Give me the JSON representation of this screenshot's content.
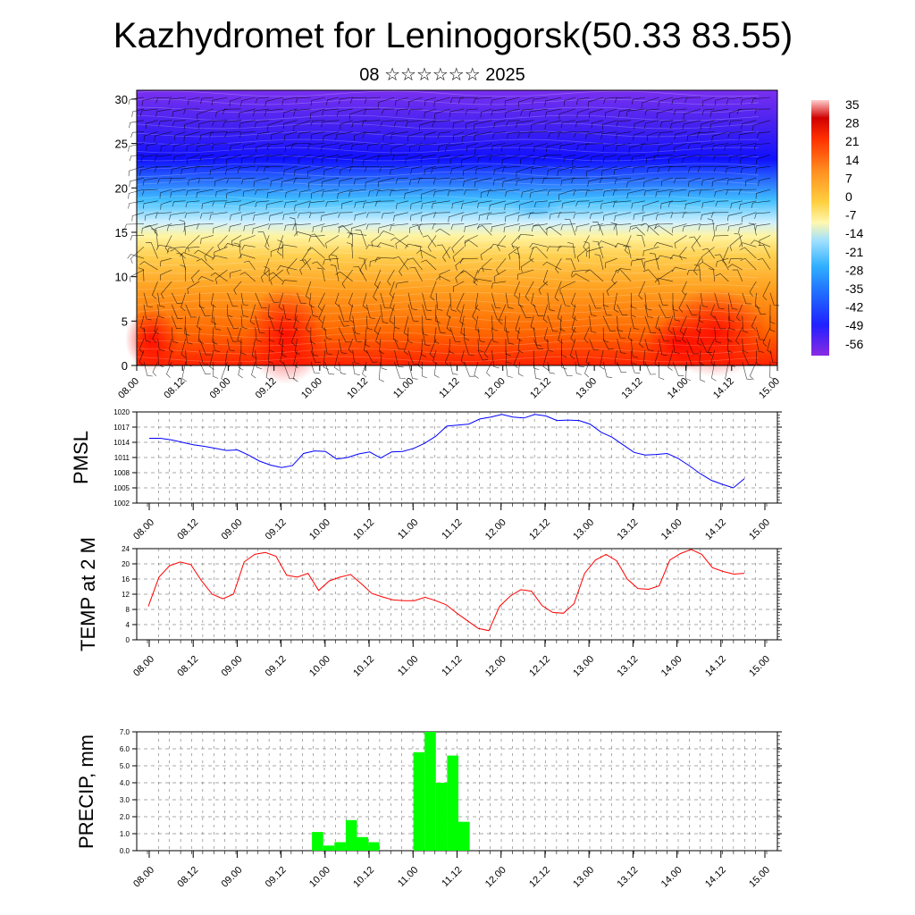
{
  "header": {
    "title": "Kazhydromet for Leninogorsk(50.33 83.55)",
    "subtitle": "08 ☆☆☆☆☆☆ 2025"
  },
  "time_labels": [
    "08.00",
    "08.12",
    "09.00",
    "09.12",
    "10.00",
    "10.12",
    "11.00",
    "11.12",
    "12.00",
    "12.12",
    "13.00",
    "13.12",
    "14.00",
    "14.12",
    "15.00"
  ],
  "colors": {
    "pmsl_line": "#0000ff",
    "temp_line": "#ff0000",
    "precip_bar": "#00ff00",
    "grid": "#555555",
    "axis": "#000000"
  },
  "chart_data": [
    {
      "type": "heatmap",
      "title": "",
      "xlabel": "",
      "ylabel": "",
      "x_tick_labels": [
        "08.00",
        "08.12",
        "09.00",
        "09.12",
        "10.00",
        "10.12",
        "11.00",
        "11.12",
        "12.00",
        "12.12",
        "13.00",
        "13.12",
        "14.00",
        "14.12",
        "15.00"
      ],
      "y_ticks": [
        0,
        5,
        10,
        15,
        20,
        25,
        30
      ],
      "ylim": [
        0,
        31
      ],
      "colorbar_labels": [
        "35",
        "28",
        "21",
        "14",
        "7",
        "0",
        "-7",
        "-14",
        "-21",
        "-28",
        "-35",
        "-42",
        "-49",
        "-56"
      ],
      "colorbar_range": [
        -60,
        38
      ],
      "overlay": "wind barbs",
      "grid": false
    },
    {
      "type": "line",
      "ylabel": "PMSL",
      "ylim": [
        1002,
        1020
      ],
      "y_ticks": [
        1002,
        1005,
        1008,
        1011,
        1014,
        1017,
        1020
      ],
      "x_tick_labels": [
        "08.00",
        "08.12",
        "09.00",
        "09.12",
        "10.00",
        "10.12",
        "11.00",
        "11.12",
        "12.00",
        "12.12",
        "13.00",
        "13.12",
        "14.00",
        "14.12",
        "15.00"
      ],
      "x_step_hours": 3,
      "grid": true,
      "values": [
        1014.8,
        1014.8,
        1014.5,
        1014.0,
        1013.5,
        1013.2,
        1012.8,
        1012.4,
        1012.5,
        1011.5,
        1010.3,
        1009.5,
        1009.0,
        1009.4,
        1011.8,
        1012.3,
        1012.2,
        1010.7,
        1011.0,
        1011.7,
        1012.1,
        1010.9,
        1012.1,
        1012.2,
        1012.8,
        1013.8,
        1015.2,
        1017.2,
        1017.4,
        1017.6,
        1018.6,
        1019.0,
        1019.5,
        1019.0,
        1018.8,
        1019.5,
        1019.2,
        1018.3,
        1018.4,
        1018.3,
        1017.6,
        1016.0,
        1015.0,
        1013.5,
        1012.0,
        1011.5,
        1011.6,
        1011.8,
        1010.8,
        1009.4,
        1007.8,
        1006.5,
        1005.7,
        1005.0,
        1006.8
      ]
    },
    {
      "type": "line",
      "ylabel": "TEMP at 2 M",
      "ylim": [
        0,
        24
      ],
      "y_ticks": [
        0,
        4,
        8,
        12,
        16,
        20,
        24
      ],
      "x_tick_labels": [
        "08.00",
        "08.12",
        "09.00",
        "09.12",
        "10.00",
        "10.12",
        "11.00",
        "11.12",
        "12.00",
        "12.12",
        "13.00",
        "13.12",
        "14.00",
        "14.12",
        "15.00"
      ],
      "x_step_hours": 3,
      "grid": true,
      "values": [
        8.8,
        16.5,
        19.5,
        20.5,
        19.8,
        15.5,
        12.0,
        10.8,
        12.0,
        20.5,
        22.5,
        23.0,
        22.0,
        17.0,
        16.5,
        17.5,
        13.0,
        15.5,
        16.5,
        17.2,
        14.8,
        12.2,
        11.3,
        10.5,
        10.3,
        10.3,
        11.2,
        10.3,
        9.2,
        7.0,
        5.0,
        3.0,
        2.4,
        8.8,
        11.5,
        13.2,
        12.8,
        9.0,
        7.2,
        7.0,
        9.5,
        17.5,
        21.0,
        22.5,
        20.8,
        16.0,
        13.5,
        13.3,
        14.2,
        21.0,
        22.7,
        23.8,
        22.5,
        19.0,
        18.0,
        17.3,
        17.5
      ]
    },
    {
      "type": "bar",
      "ylabel": "PRECIP, mm",
      "ylim": [
        0,
        7
      ],
      "y_tick_labels": [
        "0.0",
        "1.0",
        "2.0",
        "3.0",
        "4.0",
        "5.0",
        "6.0",
        "7.0"
      ],
      "x_tick_labels": [
        "08.00",
        "08.12",
        "09.00",
        "09.12",
        "10.00",
        "10.12",
        "11.00",
        "11.12",
        "12.00",
        "12.12",
        "13.00",
        "13.12",
        "14.00",
        "14.12",
        "15.00"
      ],
      "x_step_hours": 3,
      "grid": true,
      "values": [
        0,
        0,
        0,
        0,
        0,
        0,
        0,
        0,
        0,
        0,
        0,
        0,
        0,
        0,
        0,
        1.1,
        0.3,
        0.5,
        1.8,
        0.8,
        0.5,
        0,
        0,
        0,
        5.8,
        7.0,
        4.0,
        5.6,
        1.7,
        0,
        0,
        0,
        0,
        0,
        0,
        0,
        0,
        0,
        0,
        0,
        0,
        0,
        0,
        0,
        0,
        0,
        0,
        0,
        0,
        0,
        0,
        0,
        0,
        0,
        0,
        0
      ]
    }
  ]
}
